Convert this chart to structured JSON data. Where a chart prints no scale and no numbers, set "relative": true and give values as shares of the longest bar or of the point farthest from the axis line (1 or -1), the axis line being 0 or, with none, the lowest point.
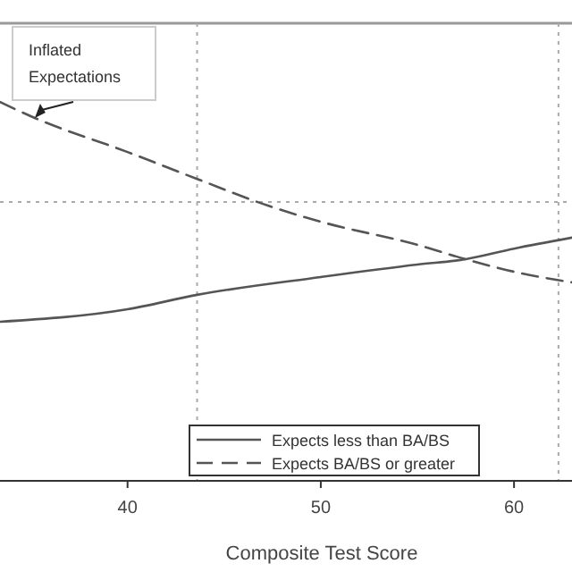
{
  "chart_data": {
    "type": "line",
    "relative": true,
    "xlabel": "Composite Test Score",
    "xlim": [
      33.4,
      63.0
    ],
    "xticks": [
      40,
      50,
      60
    ],
    "legend": "bottom",
    "series": [
      {
        "name": "Expects less than BA/BS",
        "color": "#555555",
        "line_style": "solid",
        "x": [
          33.4,
          40,
          43.6,
          50,
          55,
          57.5,
          60,
          63
        ],
        "values": [
          0.42,
          0.453,
          0.491,
          0.538,
          0.571,
          0.585,
          0.613,
          0.642
        ]
      },
      {
        "name": "Expects BA/BS or greater",
        "color": "#555555",
        "line_style": "dashed",
        "x": [
          33.4,
          35.2,
          40,
          43.6,
          47.3,
          50,
          55,
          57.5,
          60,
          63
        ],
        "values": [
          1,
          0.958,
          0.868,
          0.797,
          0.726,
          0.684,
          0.623,
          0.585,
          0.552,
          0.524
        ]
      }
    ],
    "ref_lines": [
      {
        "axis": "x",
        "value": 43.6,
        "line_style": "dotted",
        "color": "#aaaaaa"
      },
      {
        "axis": "x",
        "value": 62.3,
        "line_style": "dotted",
        "color": "#aaaaaa"
      },
      {
        "axis": "y",
        "value": 0.736,
        "line_style": "dotted",
        "color": "#aaaaaa"
      }
    ],
    "annotations": [
      {
        "text": "Inflated Expectations",
        "x": 35.2,
        "y": 0.958
      }
    ]
  }
}
